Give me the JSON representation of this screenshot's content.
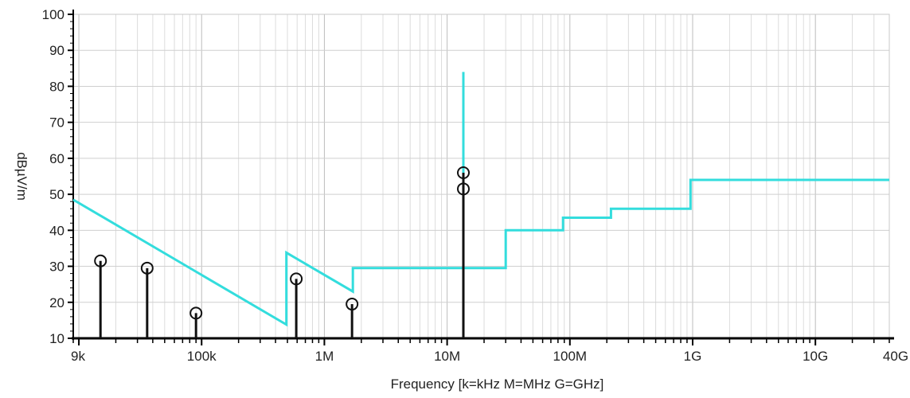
{
  "chart_data": {
    "type": "line",
    "title": "",
    "xlabel": "Frequency [k=kHz M=MHz G=GHz]",
    "ylabel": "dBµV/m",
    "x_scale": "log",
    "xlim": [
      9000,
      40000000000
    ],
    "ylim": [
      10,
      100
    ],
    "grid": true,
    "x_ticks": [
      {
        "value": 9000,
        "label": "9k"
      },
      {
        "value": 100000,
        "label": "100k"
      },
      {
        "value": 1000000,
        "label": "1M"
      },
      {
        "value": 10000000,
        "label": "10M"
      },
      {
        "value": 100000000,
        "label": "100M"
      },
      {
        "value": 1000000000,
        "label": "1G"
      },
      {
        "value": 10000000000,
        "label": "10G"
      },
      {
        "value": 40000000000,
        "label": "40G"
      }
    ],
    "y_ticks": [
      10,
      20,
      30,
      40,
      50,
      60,
      70,
      80,
      90,
      100
    ],
    "limit_line": {
      "color": "#33dddd",
      "points": [
        [
          9000,
          48.5
        ],
        [
          490000,
          13.8
        ],
        [
          490000,
          33.8
        ],
        [
          1705000,
          23.0
        ],
        [
          1705000,
          29.5
        ],
        [
          13553000,
          29.5
        ],
        [
          13553000,
          84.0
        ],
        [
          13567000,
          84.0
        ],
        [
          13567000,
          29.5
        ],
        [
          30000000,
          29.5
        ],
        [
          30000000,
          40.0
        ],
        [
          88000000,
          40.0
        ],
        [
          88000000,
          43.5
        ],
        [
          216000000,
          43.5
        ],
        [
          216000000,
          46.0
        ],
        [
          960000000,
          46.0
        ],
        [
          960000000,
          54.0
        ],
        [
          40000000000,
          54.0
        ]
      ]
    },
    "emissions": {
      "color": "#111111",
      "points": [
        [
          15000,
          31.5
        ],
        [
          36000,
          29.5
        ],
        [
          90000,
          17.0
        ],
        [
          590000,
          26.5
        ],
        [
          1680000,
          19.5
        ],
        [
          13560000,
          56.0
        ],
        [
          13560000,
          51.5
        ]
      ]
    }
  }
}
